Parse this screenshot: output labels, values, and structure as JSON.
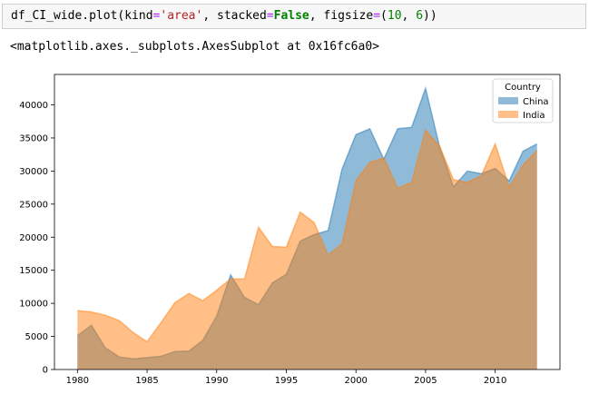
{
  "cell": {
    "code_tokens": [
      {
        "t": "df_CI_wide.plot(kind",
        "c": ""
      },
      {
        "t": "=",
        "c": "op"
      },
      {
        "t": "'area'",
        "c": "str"
      },
      {
        "t": ", stacked",
        "c": ""
      },
      {
        "t": "=",
        "c": "op"
      },
      {
        "t": "False",
        "c": "kw"
      },
      {
        "t": ", figsize",
        "c": ""
      },
      {
        "t": "=",
        "c": "op"
      },
      {
        "t": "(",
        "c": ""
      },
      {
        "t": "10",
        "c": "num"
      },
      {
        "t": ", ",
        "c": ""
      },
      {
        "t": "6",
        "c": "num"
      },
      {
        "t": "))",
        "c": ""
      }
    ],
    "output_text": "<matplotlib.axes._subplots.AxesSubplot at 0x16fc6a0>"
  },
  "chart_data": {
    "type": "area",
    "stacked": false,
    "x": [
      1980,
      1981,
      1982,
      1983,
      1984,
      1985,
      1986,
      1987,
      1988,
      1989,
      1990,
      1991,
      1992,
      1993,
      1994,
      1995,
      1996,
      1997,
      1998,
      1999,
      2000,
      2001,
      2002,
      2003,
      2004,
      2005,
      2006,
      2007,
      2008,
      2009,
      2010,
      2011,
      2012,
      2013
    ],
    "series": [
      {
        "name": "China",
        "color": "#1f77b4",
        "values": [
          5100,
          6700,
          3300,
          1900,
          1600,
          1800,
          2000,
          2700,
          2800,
          4400,
          8100,
          14300,
          10900,
          9800,
          13100,
          14400,
          19400,
          20400,
          21000,
          30300,
          35500,
          36400,
          31800,
          36400,
          36600,
          42500,
          33700,
          27600,
          30000,
          29600,
          30400,
          28500,
          33000,
          34100
        ]
      },
      {
        "name": "India",
        "color": "#ff7f0e",
        "values": [
          8900,
          8700,
          8200,
          7400,
          5600,
          4200,
          7100,
          10100,
          11500,
          10400,
          12000,
          13700,
          13700,
          21500,
          18600,
          18500,
          23800,
          22200,
          17300,
          19000,
          28600,
          31300,
          32000,
          27400,
          28300,
          36200,
          33800,
          28700,
          28300,
          29300,
          34100,
          27600,
          30900,
          33100
        ]
      }
    ],
    "xlim": [
      1978.35,
      2014.65
    ],
    "ylim": [
      0,
      44600
    ],
    "xticks": [
      1980,
      1985,
      1990,
      1995,
      2000,
      2005,
      2010
    ],
    "yticks": [
      0,
      5000,
      10000,
      15000,
      20000,
      25000,
      30000,
      35000,
      40000
    ],
    "legend": {
      "title": "Country",
      "placement": "top-right"
    },
    "alpha": 0.5,
    "grid": false
  }
}
